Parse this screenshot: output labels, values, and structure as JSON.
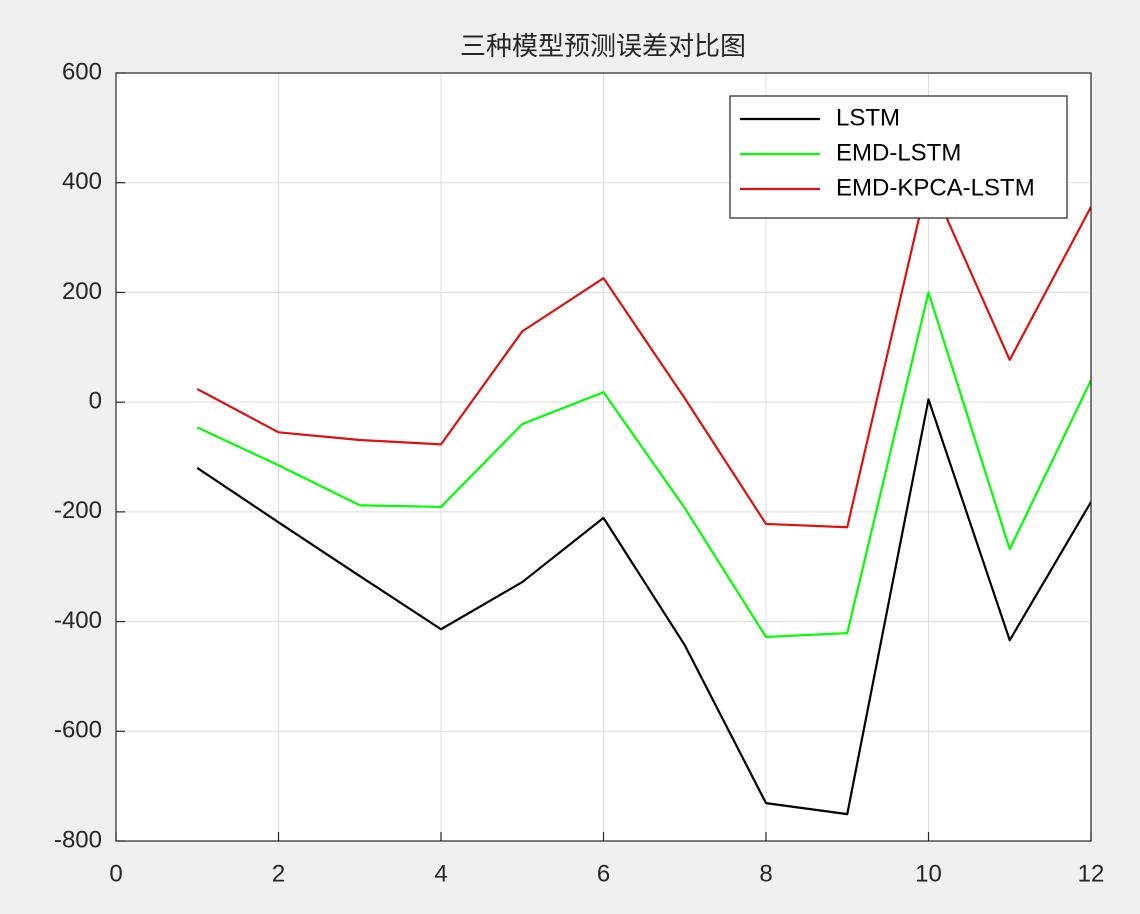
{
  "chart_data": {
    "type": "line",
    "title": "三种模型预测误差对比图",
    "x": [
      1,
      2,
      3,
      4,
      5,
      6,
      7,
      8,
      9,
      10,
      11,
      12
    ],
    "series": [
      {
        "name": "LSTM",
        "color": "#000000",
        "values": [
          -120,
          -219,
          -317,
          -414,
          -328,
          -211,
          -443,
          -731,
          -751,
          5,
          -434,
          -182
        ]
      },
      {
        "name": "EMD-LSTM",
        "color": "#00ff00",
        "values": [
          -46,
          -115,
          -188,
          -191,
          -40,
          18,
          -193,
          -428,
          -421,
          200,
          -268,
          40
        ]
      },
      {
        "name": "EMD-KPCA-LSTM",
        "color": "#e01010",
        "values": [
          24,
          -55,
          -69,
          -77,
          129,
          226,
          7,
          -222,
          -228,
          410,
          77,
          356
        ]
      }
    ],
    "xlim": [
      0,
      12
    ],
    "xticks": [
      0,
      2,
      4,
      6,
      8,
      10,
      12
    ],
    "ylim": [
      -800,
      600
    ],
    "yticks": [
      -800,
      -600,
      -400,
      -200,
      0,
      200,
      400,
      600
    ],
    "grid": true,
    "legend": "northeast"
  }
}
